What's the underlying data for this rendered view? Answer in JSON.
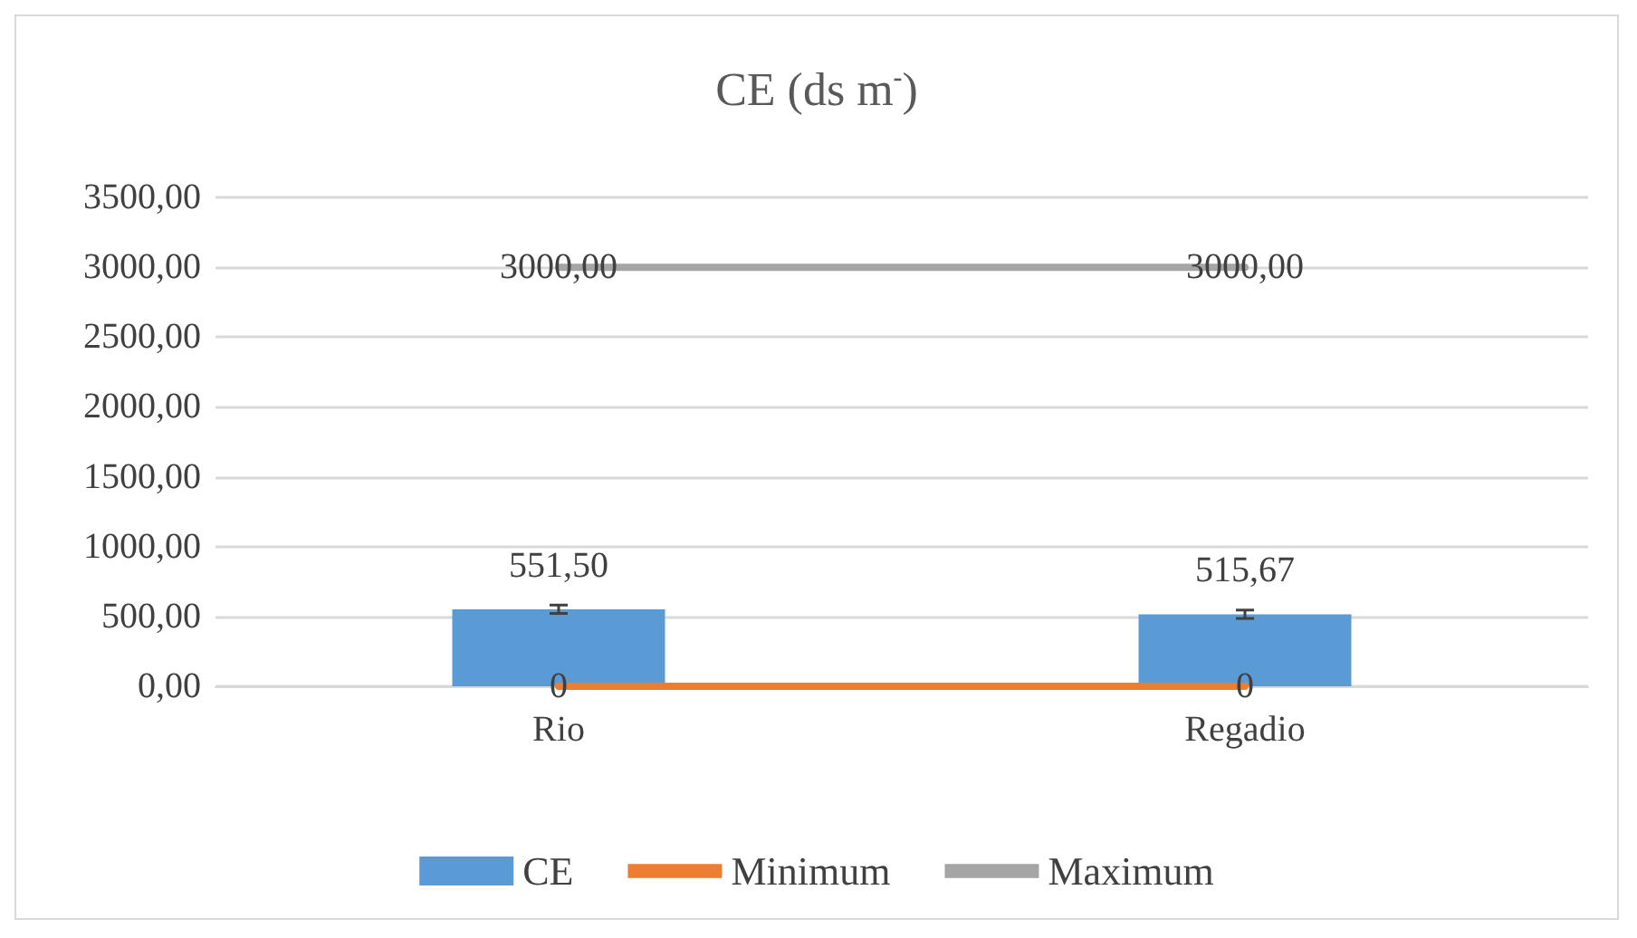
{
  "chart_data": {
    "type": "bar",
    "title": "CE (ds m$^{-}$)",
    "categories": [
      "Rio",
      "Regadio"
    ],
    "series": [
      {
        "name": "CE",
        "color": "#5b9bd5",
        "values": [
          551.5,
          515.67
        ],
        "errors": [
          30,
          30
        ],
        "value_labels": [
          "551,50",
          "515,67"
        ]
      },
      {
        "name": "Minimum",
        "type": "line",
        "color": "#ed7d31",
        "values": [
          0,
          0
        ],
        "value_labels": [
          "0",
          "0"
        ]
      },
      {
        "name": "Maximum",
        "type": "line",
        "color": "#a5a5a5",
        "values": [
          3000,
          3000
        ],
        "value_labels": [
          "3000,00",
          "3000,00"
        ]
      }
    ],
    "ylim": [
      0,
      3500
    ],
    "yticks": [
      {
        "value": 0,
        "label": "0,00"
      },
      {
        "value": 500,
        "label": "500,00"
      },
      {
        "value": 1000,
        "label": "1000,00"
      },
      {
        "value": 1500,
        "label": "1500,00"
      },
      {
        "value": 2000,
        "label": "2000,00"
      },
      {
        "value": 2500,
        "label": "2500,00"
      },
      {
        "value": 3000,
        "label": "3000,00"
      },
      {
        "value": 3500,
        "label": "3500,00"
      }
    ],
    "grid": "y",
    "legend": "bottom",
    "marker": "none",
    "line_style": "solid"
  }
}
